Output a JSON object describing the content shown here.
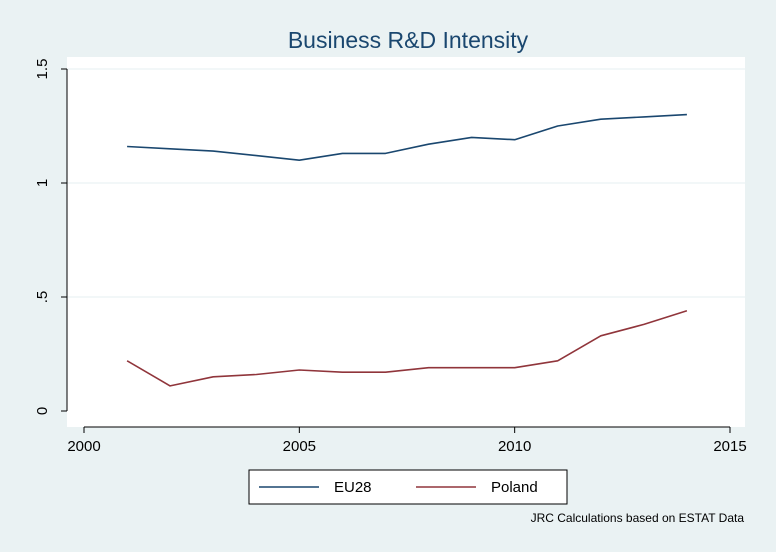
{
  "chart_data": {
    "type": "line",
    "title": "Business R&D Intensity",
    "xlabel": "",
    "ylabel": "",
    "note": "JRC Calculations based on ESTAT Data",
    "xlim": [
      2000,
      2015
    ],
    "ylim": [
      0,
      1.5
    ],
    "x_ticks": [
      2000,
      2005,
      2010,
      2015
    ],
    "x_tick_labels": [
      "2000",
      "2005",
      "2010",
      "2015"
    ],
    "y_ticks": [
      0,
      0.5,
      1,
      1.5
    ],
    "y_tick_labels": [
      "0",
      ".5",
      "1",
      "1.5"
    ],
    "grid": true,
    "legend_position": "bottom",
    "series": [
      {
        "name": "EU28",
        "color": "#1a476f",
        "x": [
          2001,
          2002,
          2003,
          2004,
          2005,
          2006,
          2007,
          2008,
          2009,
          2010,
          2011,
          2012,
          2013,
          2014
        ],
        "y": [
          1.16,
          1.15,
          1.14,
          1.12,
          1.1,
          1.13,
          1.13,
          1.17,
          1.2,
          1.19,
          1.25,
          1.28,
          1.29,
          1.3
        ]
      },
      {
        "name": "Poland",
        "color": "#90353b",
        "x": [
          2001,
          2002,
          2003,
          2004,
          2005,
          2006,
          2007,
          2008,
          2009,
          2010,
          2011,
          2012,
          2013,
          2014
        ],
        "y": [
          0.22,
          0.11,
          0.15,
          0.16,
          0.18,
          0.17,
          0.17,
          0.19,
          0.19,
          0.19,
          0.22,
          0.33,
          0.38,
          0.44
        ]
      }
    ]
  }
}
